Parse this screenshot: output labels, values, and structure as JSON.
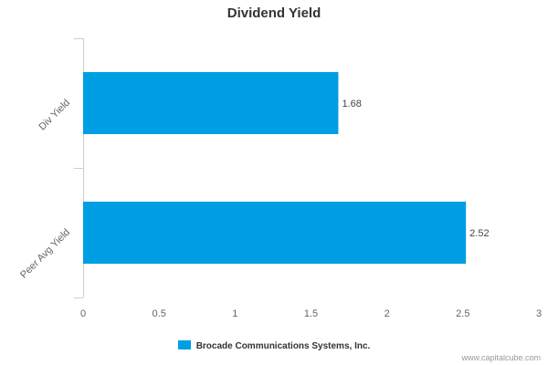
{
  "chart_data": {
    "type": "bar",
    "orientation": "horizontal",
    "title": "Dividend Yield",
    "categories": [
      "Div Yield",
      "Peer Avg Yield"
    ],
    "series": [
      {
        "name": "Brocade Communications Systems, Inc.",
        "values": [
          1.68,
          2.52
        ],
        "color": "#009fe3"
      }
    ],
    "data_labels": [
      "1.68",
      "2.52"
    ],
    "xlim": [
      0,
      3
    ],
    "x_ticks": [
      0,
      0.5,
      1,
      1.5,
      2,
      2.5,
      3
    ],
    "x_tick_labels": [
      "0",
      "0.5",
      "1",
      "1.5",
      "2",
      "2.5",
      "3"
    ],
    "grid": false,
    "legend_position": "bottom-center"
  },
  "watermark": "www.capitalcube.com"
}
